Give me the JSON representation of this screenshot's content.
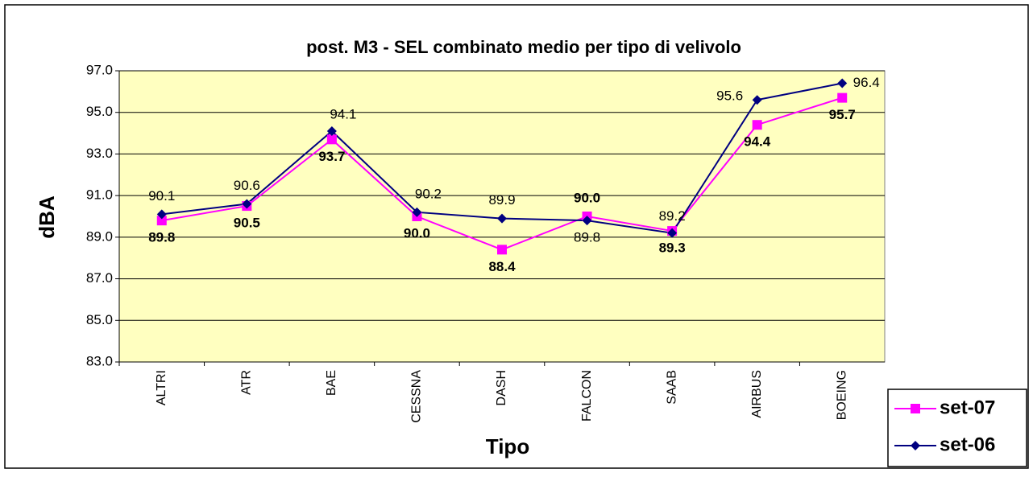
{
  "chart_data": {
    "type": "line",
    "title": "post. M3 - SEL combinato medio per tipo di velivolo",
    "x_label": "Tipo",
    "y_label": "dBA",
    "categories": [
      "ALTRI",
      "ATR",
      "BAE",
      "CESSNA",
      "DASH",
      "FALCON",
      "SAAB",
      "AIRBUS",
      "BOEING"
    ],
    "series": [
      {
        "name": "set-07",
        "color": "#ff00ff",
        "marker": "square",
        "values": [
          89.8,
          90.5,
          93.7,
          90.0,
          88.4,
          90.0,
          89.3,
          94.4,
          95.7
        ],
        "value_labels": [
          "89.8",
          "90.5",
          "93.7",
          "90.0",
          "88.4",
          "90.0",
          "89.3",
          "94.4",
          "95.7"
        ]
      },
      {
        "name": "set-06",
        "color": "#000080",
        "marker": "diamond",
        "values": [
          90.1,
          90.6,
          94.1,
          90.2,
          89.9,
          89.8,
          89.2,
          95.6,
          96.4
        ],
        "value_labels": [
          "90.1",
          "90.6",
          "94.1",
          "90.2",
          "89.9",
          "89.8",
          "89.2",
          "95.6",
          "96.4"
        ]
      }
    ],
    "ylim": [
      83,
      97
    ],
    "yticks": [
      {
        "value": 83,
        "label": "83.0"
      },
      {
        "value": 85,
        "label": "85.0"
      },
      {
        "value": 87,
        "label": "87.0"
      },
      {
        "value": 89,
        "label": "89.0"
      },
      {
        "value": 91,
        "label": "91.0"
      },
      {
        "value": 93,
        "label": "93.0"
      },
      {
        "value": 95,
        "label": "95.0"
      },
      {
        "value": 97,
        "label": "97.0"
      }
    ],
    "grid": true,
    "legend": "bottom-right"
  }
}
